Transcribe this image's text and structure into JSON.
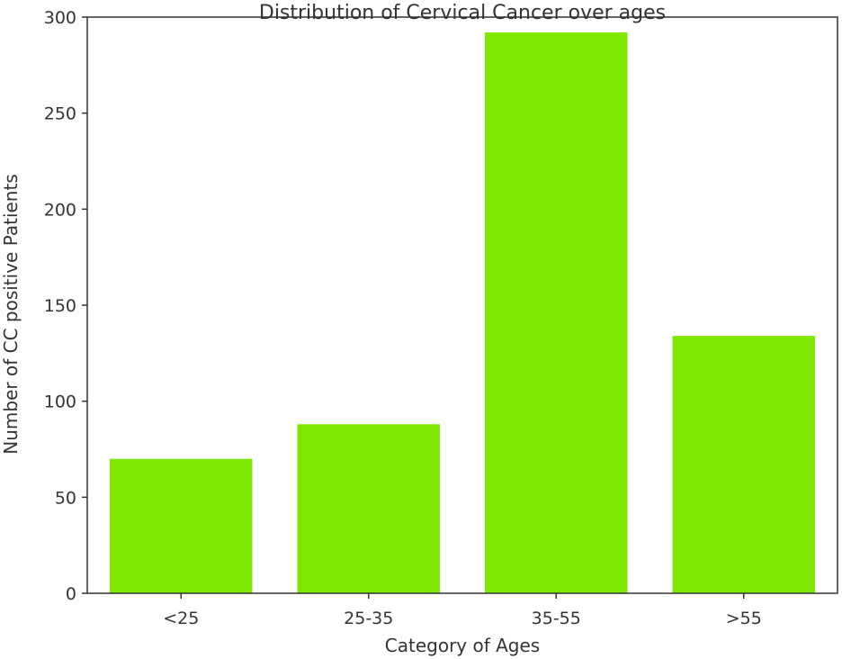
{
  "chart_data": {
    "type": "bar",
    "title": "Distribution of Cervical Cancer over ages",
    "xlabel": "Category of Ages",
    "ylabel": "Number of CC positive Patients",
    "categories": [
      "<25",
      "25-35",
      "35-55",
      ">55"
    ],
    "values": [
      70,
      88,
      292,
      134
    ],
    "ylim": [
      0,
      300
    ],
    "yticks": [
      0,
      50,
      100,
      150,
      200,
      250,
      300
    ],
    "bar_color": "#7FE800",
    "grid": false,
    "legend": "none"
  }
}
